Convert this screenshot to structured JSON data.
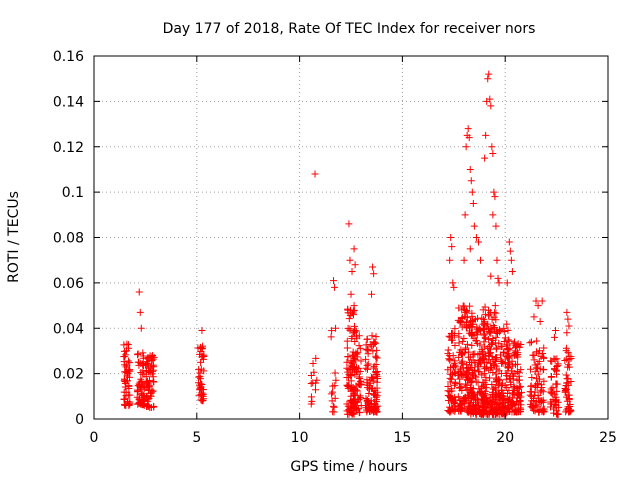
{
  "chart_data": {
    "type": "scatter",
    "title": "Day 177 of 2018, Rate Of TEC Index for receiver nors",
    "xlabel": "GPS time / hours",
    "ylabel": "ROTI / TECUs",
    "xlim": [
      0,
      25
    ],
    "ylim": [
      0,
      0.16
    ],
    "xticks": [
      0,
      5,
      10,
      15,
      20,
      25
    ],
    "yticks": [
      0,
      0.02,
      0.04,
      0.06,
      0.08,
      0.1,
      0.12,
      0.14,
      0.16
    ],
    "grid": true,
    "marker": "+",
    "color": "#ff0000",
    "clusters": [
      {
        "start": 1.45,
        "end": 1.75,
        "base": 0.006,
        "peak": 0.033,
        "count": 55
      },
      {
        "start": 2.1,
        "end": 2.45,
        "base": 0.006,
        "peak": 0.03,
        "count": 60
      },
      {
        "start": 2.5,
        "end": 2.95,
        "base": 0.005,
        "peak": 0.028,
        "count": 65
      },
      {
        "start": 5.05,
        "end": 5.35,
        "base": 0.008,
        "peak": 0.033,
        "count": 45
      },
      {
        "start": 10.55,
        "end": 10.85,
        "base": 0.003,
        "peak": 0.027,
        "count": 12
      },
      {
        "start": 11.5,
        "end": 11.8,
        "base": 0.003,
        "peak": 0.041,
        "count": 14
      },
      {
        "start": 12.3,
        "end": 12.7,
        "base": 0.002,
        "peak": 0.05,
        "count": 95
      },
      {
        "start": 12.6,
        "end": 13.0,
        "base": 0.002,
        "peak": 0.04,
        "count": 60
      },
      {
        "start": 13.2,
        "end": 13.8,
        "base": 0.003,
        "peak": 0.038,
        "count": 110
      },
      {
        "start": 17.2,
        "end": 17.6,
        "base": 0.003,
        "peak": 0.04,
        "count": 70
      },
      {
        "start": 17.7,
        "end": 18.4,
        "base": 0.003,
        "peak": 0.05,
        "count": 150
      },
      {
        "start": 18.3,
        "end": 19.0,
        "base": 0.002,
        "peak": 0.045,
        "count": 140
      },
      {
        "start": 18.9,
        "end": 19.6,
        "base": 0.002,
        "peak": 0.05,
        "count": 150
      },
      {
        "start": 19.5,
        "end": 20.2,
        "base": 0.002,
        "peak": 0.042,
        "count": 120
      },
      {
        "start": 20.1,
        "end": 20.8,
        "base": 0.003,
        "peak": 0.035,
        "count": 110
      },
      {
        "start": 21.2,
        "end": 21.9,
        "base": 0.003,
        "peak": 0.035,
        "count": 80
      },
      {
        "start": 22.2,
        "end": 22.6,
        "base": 0.002,
        "peak": 0.028,
        "count": 50
      },
      {
        "start": 22.9,
        "end": 23.2,
        "base": 0.003,
        "peak": 0.032,
        "count": 45
      }
    ],
    "outliers": [
      [
        1.6,
        0.033
      ],
      [
        2.2,
        0.056
      ],
      [
        2.25,
        0.047
      ],
      [
        2.3,
        0.04
      ],
      [
        2.85,
        0.028
      ],
      [
        5.25,
        0.039
      ],
      [
        10.75,
        0.108
      ],
      [
        11.65,
        0.061
      ],
      [
        11.7,
        0.058
      ],
      [
        11.75,
        0.04
      ],
      [
        12.4,
        0.086
      ],
      [
        12.45,
        0.07
      ],
      [
        12.55,
        0.065
      ],
      [
        12.65,
        0.075
      ],
      [
        12.7,
        0.068
      ],
      [
        12.5,
        0.055
      ],
      [
        13.55,
        0.067
      ],
      [
        13.6,
        0.064
      ],
      [
        13.5,
        0.055
      ],
      [
        17.35,
        0.08
      ],
      [
        17.4,
        0.076
      ],
      [
        17.3,
        0.07
      ],
      [
        17.45,
        0.06
      ],
      [
        17.5,
        0.058
      ],
      [
        18.0,
        0.07
      ],
      [
        18.05,
        0.09
      ],
      [
        18.1,
        0.12
      ],
      [
        18.15,
        0.125
      ],
      [
        18.2,
        0.128
      ],
      [
        18.25,
        0.124
      ],
      [
        18.3,
        0.11
      ],
      [
        18.35,
        0.105
      ],
      [
        18.4,
        0.1
      ],
      [
        18.45,
        0.095
      ],
      [
        18.5,
        0.085
      ],
      [
        18.6,
        0.08
      ],
      [
        18.7,
        0.078
      ],
      [
        18.3,
        0.075
      ],
      [
        18.8,
        0.07
      ],
      [
        19.0,
        0.115
      ],
      [
        19.05,
        0.125
      ],
      [
        19.1,
        0.14
      ],
      [
        19.15,
        0.15
      ],
      [
        19.2,
        0.152
      ],
      [
        19.25,
        0.141
      ],
      [
        19.3,
        0.138
      ],
      [
        19.35,
        0.12
      ],
      [
        19.4,
        0.117
      ],
      [
        19.45,
        0.1
      ],
      [
        19.5,
        0.098
      ],
      [
        19.55,
        0.085
      ],
      [
        19.4,
        0.09
      ],
      [
        19.6,
        0.07
      ],
      [
        19.65,
        0.062
      ],
      [
        19.7,
        0.06
      ],
      [
        19.3,
        0.063
      ],
      [
        20.2,
        0.078
      ],
      [
        20.25,
        0.074
      ],
      [
        20.3,
        0.07
      ],
      [
        20.35,
        0.065
      ],
      [
        20.1,
        0.06
      ],
      [
        21.5,
        0.052
      ],
      [
        21.6,
        0.05
      ],
      [
        21.7,
        0.043
      ],
      [
        21.4,
        0.045
      ],
      [
        21.8,
        0.052
      ],
      [
        22.45,
        0.039
      ],
      [
        22.4,
        0.036
      ],
      [
        23.0,
        0.047
      ],
      [
        23.05,
        0.044
      ],
      [
        23.1,
        0.041
      ],
      [
        23.0,
        0.038
      ]
    ]
  }
}
